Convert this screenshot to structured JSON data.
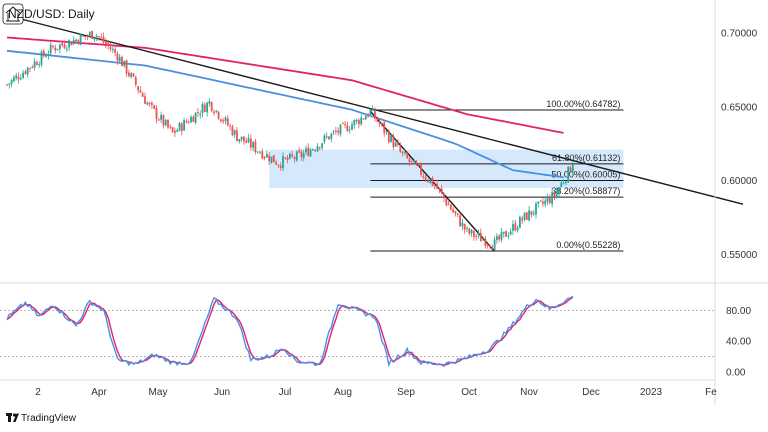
{
  "title": "NZD/USD: Daily",
  "brand": "TradingView",
  "colors": {
    "bull": "#26a69a",
    "bear": "#ef5350",
    "ma_fast": "#4a90e2",
    "ma_slow": "#e0226e",
    "trendline": "#1a1a1a",
    "zone": "#cfe5fb",
    "stoch_k": "#4a90e2",
    "stoch_d": "#e0226e"
  },
  "chart_data": [
    {
      "type": "candlestick",
      "title": "NZD/USD: Daily",
      "price_axis": {
        "ticks": [
          "0.70000",
          "0.65000",
          "0.60000",
          "0.55000"
        ],
        "ylim": [
          0.536,
          0.717
        ]
      },
      "time_axis": {
        "ticks": [
          "2",
          "Apr",
          "May",
          "Jun",
          "Jul",
          "Aug",
          "Sep",
          "Oct",
          "Nov",
          "Dec",
          "2023",
          "Fe"
        ]
      },
      "path_waypoints": [
        {
          "t": 0,
          "price": 0.665
        },
        {
          "t": 20,
          "price": 0.69
        },
        {
          "t": 38,
          "price": 0.7
        },
        {
          "t": 48,
          "price": 0.685
        },
        {
          "t": 62,
          "price": 0.65
        },
        {
          "t": 72,
          "price": 0.632
        },
        {
          "t": 88,
          "price": 0.653
        },
        {
          "t": 100,
          "price": 0.63
        },
        {
          "t": 118,
          "price": 0.612
        },
        {
          "t": 128,
          "price": 0.617
        },
        {
          "t": 140,
          "price": 0.63
        },
        {
          "t": 152,
          "price": 0.64
        },
        {
          "t": 158,
          "price": 0.647
        },
        {
          "t": 172,
          "price": 0.617
        },
        {
          "t": 186,
          "price": 0.597
        },
        {
          "t": 200,
          "price": 0.565
        },
        {
          "t": 212,
          "price": 0.557
        },
        {
          "t": 225,
          "price": 0.575
        },
        {
          "t": 238,
          "price": 0.59
        },
        {
          "t": 246,
          "price": 0.611
        }
      ],
      "moving_averages": [
        {
          "points": [
            [
              0,
              0.688
            ],
            [
              60,
              0.678
            ],
            [
              150,
              0.648
            ],
            [
              195,
              0.625
            ],
            [
              220,
              0.607
            ],
            [
              243,
              0.602
            ]
          ]
        },
        {
          "points": [
            [
              0,
              0.697
            ],
            [
              60,
              0.69
            ],
            [
              150,
              0.668
            ],
            [
              200,
              0.645
            ],
            [
              243,
              0.632
            ]
          ]
        }
      ],
      "trendlines": [
        {
          "points": [
            [
              0,
              0.712
            ],
            [
              320,
              0.584
            ]
          ]
        },
        {
          "points": [
            [
              158,
              0.647
            ],
            [
              212,
              0.552
            ]
          ]
        }
      ],
      "zone": {
        "t_from": 114,
        "t_to": 268,
        "price_from": 0.595,
        "price_to": 0.621
      },
      "fibonacci": {
        "t_from": 158,
        "t_to": 268,
        "levels": [
          {
            "label": "100.00%(0.64782)",
            "price": 0.64782
          },
          {
            "label": "61.80%(0.61132)",
            "price": 0.61132
          },
          {
            "label": "50.00%(0.60005)",
            "price": 0.60005
          },
          {
            "label": "38.20%(0.58877)",
            "price": 0.58877
          },
          {
            "label": "0.00%(0.55228)",
            "price": 0.55228
          }
        ]
      }
    },
    {
      "type": "line",
      "indicator": "stochastic",
      "ylim": [
        -8,
        112
      ],
      "ticks": [
        "80.00",
        "40.00",
        "0.00"
      ],
      "levels": [
        80,
        20
      ],
      "k_waypoints": [
        [
          0,
          70
        ],
        [
          8,
          90
        ],
        [
          14,
          72
        ],
        [
          20,
          88
        ],
        [
          30,
          60
        ],
        [
          36,
          92
        ],
        [
          42,
          80
        ],
        [
          48,
          15
        ],
        [
          56,
          10
        ],
        [
          64,
          22
        ],
        [
          72,
          12
        ],
        [
          80,
          12
        ],
        [
          90,
          95
        ],
        [
          100,
          70
        ],
        [
          106,
          16
        ],
        [
          114,
          20
        ],
        [
          120,
          32
        ],
        [
          126,
          14
        ],
        [
          136,
          10
        ],
        [
          144,
          90
        ],
        [
          152,
          80
        ],
        [
          160,
          72
        ],
        [
          166,
          12
        ],
        [
          174,
          28
        ],
        [
          180,
          12
        ],
        [
          190,
          10
        ],
        [
          200,
          18
        ],
        [
          210,
          30
        ],
        [
          218,
          55
        ],
        [
          226,
          85
        ],
        [
          230,
          95
        ],
        [
          236,
          82
        ],
        [
          242,
          92
        ],
        [
          246,
          98
        ]
      ]
    }
  ]
}
